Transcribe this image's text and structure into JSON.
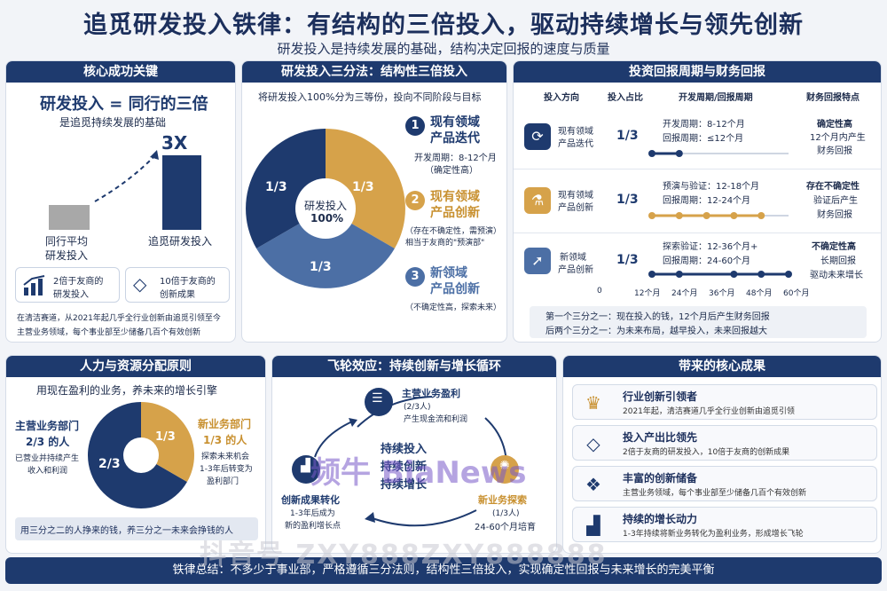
{
  "title": "追觅研发投入铁律：有结构的三倍投入，驱动持续增长与领先创新",
  "subtitle": "研发投入是持续发展的基础，结构决定回报的速度与质量",
  "core": {
    "header": "核心成功关键",
    "headline": "研发投入 = 同行的三倍",
    "tagline": "是追觅持续发展的基础",
    "bar_multiple": "3X",
    "bar_peer_label_1": "同行平均",
    "bar_peer_label_2": "研发投入",
    "bar_dreame_label": "追觅研发投入",
    "bars": {
      "peer_value": 1,
      "dreame_value": 3
    },
    "stat1_1": "2倍于友商的",
    "stat1_2": "研发投入",
    "stat2_1": "10倍于友商的",
    "stat2_2": "创新成果",
    "note_1": "在清洁赛道，从2021年起几乎全行业创新由追觅引领至今",
    "note_2": "主营业务领域，每个事业部至少储备几百个有效创新"
  },
  "thirds": {
    "header": "研发投入三分法：结构性三倍投入",
    "intro": "将研发投入100%分为三等份，投向不同阶段与目标",
    "center_1": "研发投入",
    "center_2": "100%",
    "slice_label": "1/3",
    "items": [
      {
        "num": "1",
        "title_1": "现有领域",
        "title_2": "产品迭代",
        "desc_1": "开发周期：8-12个月",
        "desc_2": "（确定性高）"
      },
      {
        "num": "2",
        "title_1": "现有领域",
        "title_2": "产品创新",
        "desc_1": "（存在不确定性，需预演）",
        "desc_2": "相当于友商的\"预演部\""
      },
      {
        "num": "3",
        "title_1": "新领域",
        "title_2": "产品创新",
        "desc_1": "（不确定性高，探索未来）",
        "desc_2": ""
      }
    ]
  },
  "returns": {
    "header": "投资回报周期与财务回报",
    "col_direction": "投入方向",
    "col_share": "投入占比",
    "col_cycle": "开发周期/回报周期",
    "col_feature": "财务回报特点",
    "rows": [
      {
        "dir_1": "现有领域",
        "dir_2": "产品迭代",
        "share": "1/3",
        "cycle_1": "开发周期：8-12个月",
        "cycle_2": "回报周期：≤12个月",
        "feat_1": "确定性高",
        "feat_2": "12个月内产生",
        "feat_3": "财务回报",
        "dots": [
          0,
          12
        ]
      },
      {
        "dir_1": "现有领域",
        "dir_2": "产品创新",
        "share": "1/3",
        "cycle_1": "预演与验证：12-18个月",
        "cycle_2": "回报周期：12-24个月",
        "feat_1": "存在不确定性",
        "feat_2": "验证后产生",
        "feat_3": "财务回报",
        "dots": [
          0,
          12,
          24,
          36,
          48
        ]
      },
      {
        "dir_1": "新领域",
        "dir_2": "产品创新",
        "share": "1/3",
        "cycle_1": "探索验证：12-36个月+",
        "cycle_2": "回报周期：24-60个月",
        "feat_1": "不确定性高",
        "feat_2": "长期回报",
        "feat_3": "驱动未来增长",
        "dots": [
          0,
          12,
          36,
          48,
          60
        ]
      }
    ],
    "axis_ticks": [
      "0",
      "12个月",
      "24个月",
      "36个月",
      "48个月",
      "60个月"
    ],
    "summary_1": "第一个三分之一：现在投入的钱，12个月后产生财务回报",
    "summary_2": "后两个三分之一：为未来布局，越早投入，未来回报越大"
  },
  "people": {
    "header": "人力与资源分配原则",
    "intro": "用现在盈利的业务，养未来的增长引擎",
    "main_1": "主营业务部门",
    "main_2": "2/3 的人",
    "main_3": "已营业并持续产生",
    "main_4": "收入和利润",
    "new_1": "新业务部门",
    "new_2": "1/3 的人",
    "new_3": "探索未来机会",
    "new_4": "1-3年后转变为",
    "new_5": "盈利部门",
    "slice_big": "2/3",
    "slice_small": "1/3",
    "slogan": "用三分之二的人挣来的钱，养三分之一未来会挣钱的人"
  },
  "flywheel": {
    "header": "飞轮效应：持续创新与增长循环",
    "top_1": "主营业务盈利",
    "top_2": "(2/3人)",
    "top_3": "产生现金流和利润",
    "center_1": "持续投入",
    "center_2": "持续创新",
    "center_3": "持续增长",
    "right_1": "新业务探索",
    "right_2": "(1/3人)",
    "right_3": "24-60个月培育",
    "left_1": "创新成果转化",
    "left_2": "1-3年后成为",
    "left_3": "新的盈利增长点"
  },
  "results": {
    "header": "带来的核心成果",
    "items": [
      {
        "icon": "crown-icon",
        "glyph": "♛",
        "title": "行业创新引领者",
        "desc": "2021年起，清洁赛道几乎全行业创新由追觅引领"
      },
      {
        "icon": "diamond-icon",
        "glyph": "◇",
        "title": "投入产出比领先",
        "desc": "2倍于友商的研发投入，10倍于友商的创新成果"
      },
      {
        "icon": "cubes-icon",
        "glyph": "❖",
        "title": "丰富的创新储备",
        "desc": "主营业务领域，每个事业部至少储备几百个有效创新"
      },
      {
        "icon": "growth-chart-icon",
        "glyph": "▟",
        "title": "持续的增长动力",
        "desc": "1-3年持续将新业务转化为盈利业务，形成增长飞轮"
      }
    ]
  },
  "footer": "铁律总结：不多少于事业部，严格遵循三分法则，结构性三倍投入，实现确定性回报与未来增长的完美平衡",
  "watermark": "频牛 BiaNews",
  "watermark2": "抖音号 ZXY888ZXY888888",
  "colors": {
    "navy": "#1e3a6e",
    "gold": "#d6a24a",
    "steel": "#4c6fa5"
  }
}
